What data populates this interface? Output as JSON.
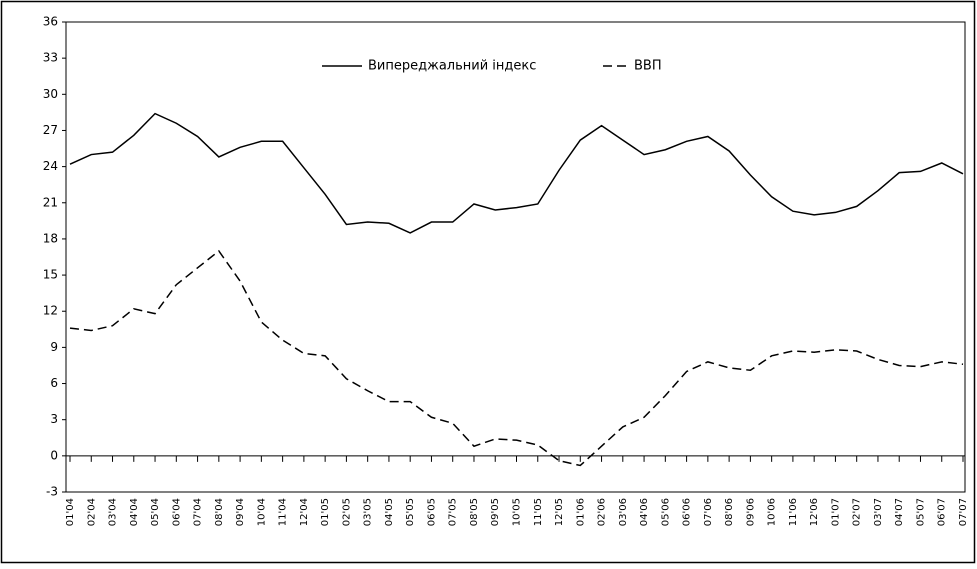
{
  "chart_data": {
    "type": "line",
    "categories": [
      "01'04",
      "02'04",
      "03'04",
      "04'04",
      "05'04",
      "06'04",
      "07'04",
      "08'04",
      "09'04",
      "10'04",
      "11'04",
      "12'04",
      "01'05",
      "02'05",
      "03'05",
      "04'05",
      "05'05",
      "06'05",
      "07'05",
      "08'05",
      "09'05",
      "10'05",
      "11'05",
      "12'05",
      "01'06",
      "02'06",
      "03'06",
      "04'06",
      "05'06",
      "06'06",
      "07'06",
      "08'06",
      "09'06",
      "10'06",
      "11'06",
      "12'06",
      "01'07",
      "02'07",
      "03'07",
      "04'07",
      "05'07",
      "06'07",
      "07'07"
    ],
    "series": [
      {
        "name": "Випереджальний індекс",
        "color": "#000000",
        "dash": false,
        "values": [
          24.2,
          25.0,
          25.2,
          26.6,
          28.4,
          27.6,
          26.5,
          24.8,
          25.6,
          26.1,
          26.1,
          23.9,
          21.7,
          19.2,
          19.4,
          19.3,
          18.5,
          19.4,
          19.4,
          20.9,
          20.4,
          20.6,
          20.9,
          23.7,
          26.2,
          27.4,
          26.2,
          25.0,
          25.4,
          26.1,
          26.5,
          25.3,
          23.3,
          21.5,
          20.3,
          20.0,
          20.2,
          20.7,
          22.0,
          23.5,
          23.6,
          24.3,
          23.4
        ]
      },
      {
        "name": "ВВП",
        "color": "#000000",
        "dash": true,
        "values": [
          10.6,
          10.4,
          10.8,
          12.2,
          11.8,
          14.2,
          15.6,
          17.0,
          14.5,
          11.1,
          9.6,
          8.5,
          8.3,
          6.4,
          5.4,
          4.5,
          4.5,
          3.2,
          2.7,
          0.8,
          1.4,
          1.3,
          0.9,
          -0.4,
          -0.8,
          0.8,
          2.4,
          3.2,
          5.0,
          7.0,
          7.8,
          7.3,
          7.1,
          8.3,
          8.7,
          8.6,
          8.8,
          8.7,
          8.0,
          7.5,
          7.4,
          7.8,
          7.6
        ]
      }
    ],
    "ylim": [
      -3,
      36
    ],
    "yticks": [
      -3,
      0,
      3,
      6,
      9,
      12,
      15,
      18,
      21,
      24,
      27,
      30,
      33,
      36
    ]
  }
}
